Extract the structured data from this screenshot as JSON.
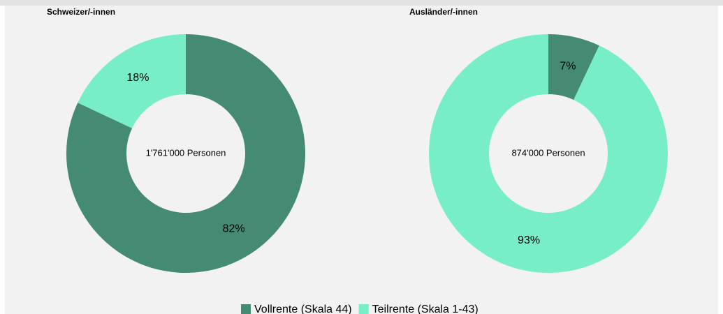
{
  "chart_data": [
    {
      "type": "pie",
      "title": "Schweizer/-innen",
      "center_label": "1'761'000 Personen",
      "values": [
        82,
        18
      ],
      "value_labels": [
        "82%",
        "18%"
      ],
      "colors": [
        "#458b73",
        "#77eec8"
      ]
    },
    {
      "type": "pie",
      "title": "Ausländer/-innen",
      "center_label": "874'000 Personen",
      "values": [
        7,
        93
      ],
      "value_labels": [
        "7%",
        "93%"
      ],
      "colors": [
        "#458b73",
        "#77eec8"
      ]
    }
  ],
  "legend": [
    "Vollrente (Skala 44)",
    "Teilrente (Skala 1-43)"
  ]
}
